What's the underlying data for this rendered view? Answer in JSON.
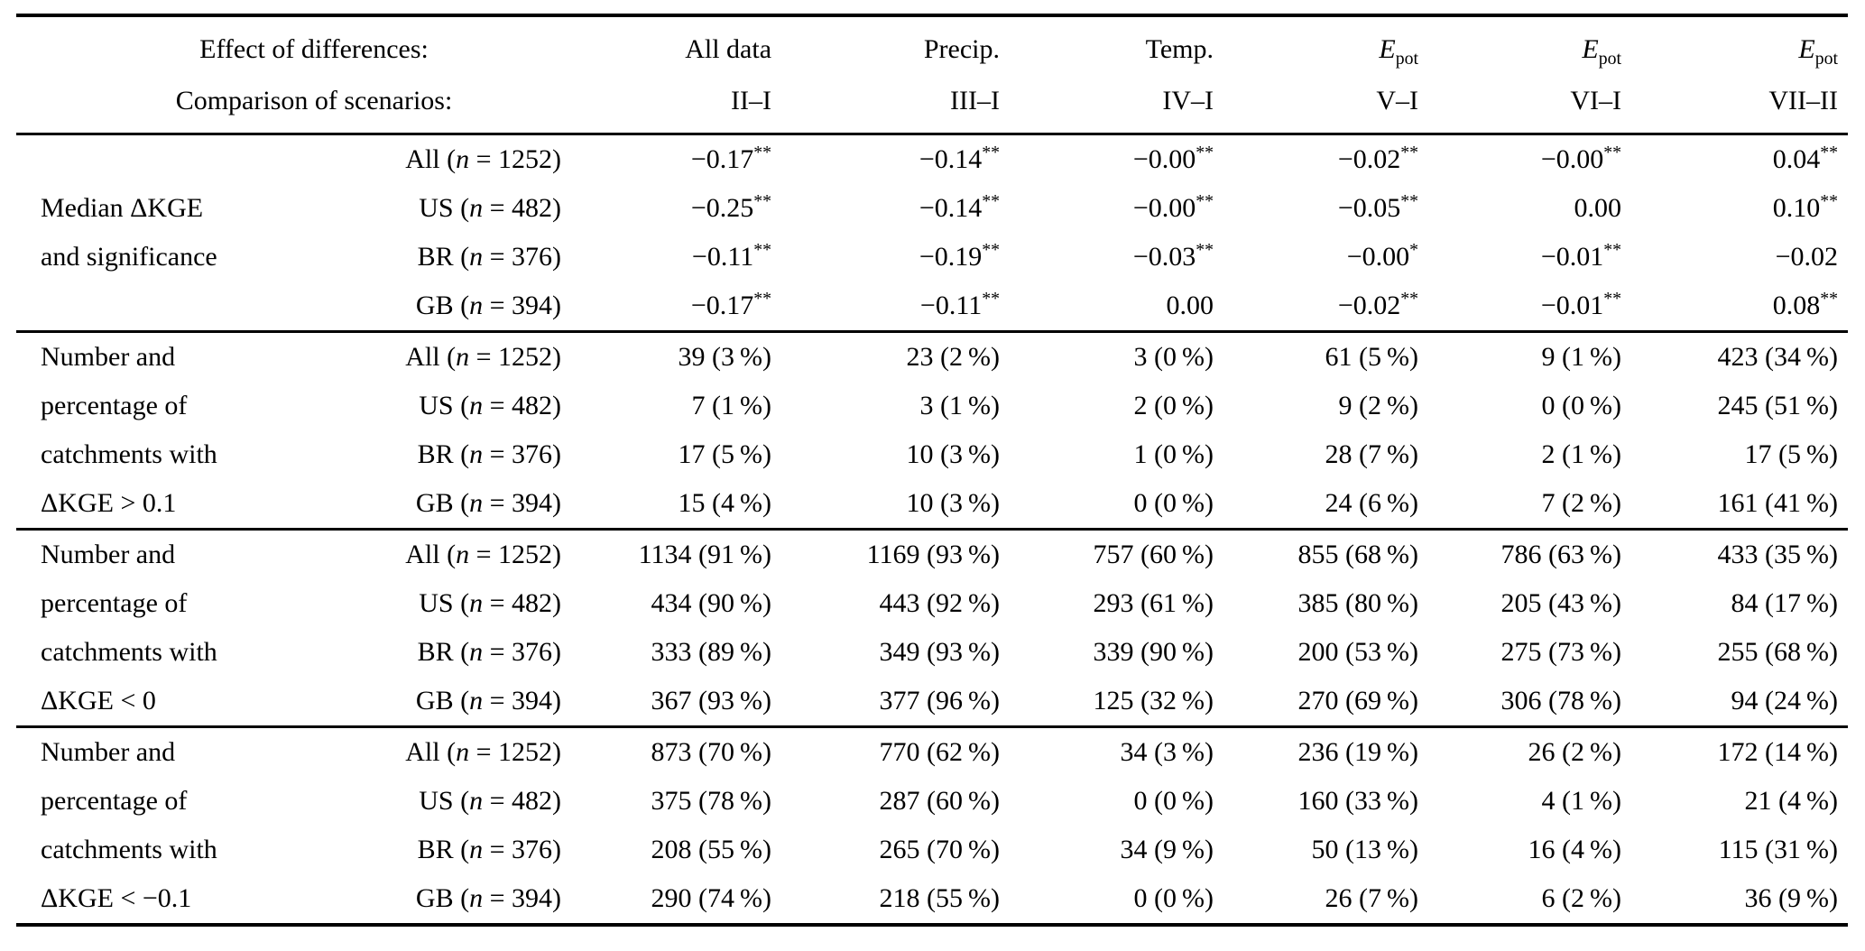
{
  "table": {
    "corner_header": {
      "line1": "Effect of differences:",
      "line2": "Comparison of scenarios:"
    },
    "columns": [
      {
        "label": "All data",
        "comparison": "II–I"
      },
      {
        "label": "Precip.",
        "comparison": "III–I"
      },
      {
        "label": "Temp.",
        "comparison": "IV–I"
      },
      {
        "label_italic": "E",
        "label_sub": "pot",
        "comparison": "V–I"
      },
      {
        "label_italic": "E",
        "label_sub": "pot",
        "comparison": "VI–I"
      },
      {
        "label_italic": "E",
        "label_sub": "pot",
        "comparison": "VII–II"
      }
    ],
    "row_groups": [
      {
        "name": "median-dkge-significance",
        "rows": [
          {
            "label_line": "",
            "region": "All",
            "n": "1252",
            "values": [
              "−0.17**",
              "−0.14**",
              "−0.00**",
              "−0.02**",
              "−0.00**",
              "0.04**"
            ]
          },
          {
            "label_line": "Median ΔKGE",
            "region": "US",
            "n": "482",
            "values": [
              "−0.25**",
              "−0.14**",
              "−0.00**",
              "−0.05**",
              "0.00",
              "0.10**"
            ]
          },
          {
            "label_line": "and significance",
            "region": "BR",
            "n": "376",
            "values": [
              "−0.11**",
              "−0.19**",
              "−0.03**",
              "−0.00*",
              "−0.01**",
              "−0.02"
            ]
          },
          {
            "label_line": "",
            "region": "GB",
            "n": "394",
            "values": [
              "−0.17**",
              "−0.11**",
              "0.00",
              "−0.02**",
              "−0.01**",
              "0.08**"
            ]
          }
        ]
      },
      {
        "name": "catchments-dkge-gt-0.1",
        "rows": [
          {
            "label_line": "Number and",
            "region": "All",
            "n": "1252",
            "values": [
              "39 (3 %)",
              "23 (2 %)",
              "3 (0 %)",
              "61 (5 %)",
              "9 (1 %)",
              "423 (34 %)"
            ]
          },
          {
            "label_line": "percentage of",
            "region": "US",
            "n": "482",
            "values": [
              "7 (1 %)",
              "3 (1 %)",
              "2 (0 %)",
              "9 (2 %)",
              "0 (0 %)",
              "245 (51 %)"
            ]
          },
          {
            "label_line": "catchments with",
            "region": "BR",
            "n": "376",
            "values": [
              "17 (5 %)",
              "10 (3 %)",
              "1 (0 %)",
              "28 (7 %)",
              "2 (1 %)",
              "17 (5 %)"
            ]
          },
          {
            "label_line": "ΔKGE > 0.1",
            "region": "GB",
            "n": "394",
            "values": [
              "15 (4 %)",
              "10 (3 %)",
              "0 (0 %)",
              "24 (6 %)",
              "7 (2 %)",
              "161 (41 %)"
            ]
          }
        ]
      },
      {
        "name": "catchments-dkge-lt-0",
        "rows": [
          {
            "label_line": "Number and",
            "region": "All",
            "n": "1252",
            "values": [
              "1134 (91 %)",
              "1169 (93 %)",
              "757 (60 %)",
              "855 (68 %)",
              "786 (63 %)",
              "433 (35 %)"
            ]
          },
          {
            "label_line": "percentage of",
            "region": "US",
            "n": "482",
            "values": [
              "434 (90 %)",
              "443 (92 %)",
              "293 (61 %)",
              "385 (80 %)",
              "205 (43 %)",
              "84 (17 %)"
            ]
          },
          {
            "label_line": "catchments with",
            "region": "BR",
            "n": "376",
            "values": [
              "333 (89 %)",
              "349 (93 %)",
              "339 (90 %)",
              "200 (53 %)",
              "275 (73 %)",
              "255 (68 %)"
            ]
          },
          {
            "label_line": "ΔKGE < 0",
            "region": "GB",
            "n": "394",
            "values": [
              "367 (93 %)",
              "377 (96 %)",
              "125 (32 %)",
              "270 (69 %)",
              "306 (78 %)",
              "94 (24 %)"
            ]
          }
        ]
      },
      {
        "name": "catchments-dkge-lt-neg0.1",
        "rows": [
          {
            "label_line": "Number and",
            "region": "All",
            "n": "1252",
            "values": [
              "873 (70 %)",
              "770 (62 %)",
              "34 (3 %)",
              "236 (19 %)",
              "26 (2 %)",
              "172 (14 %)"
            ]
          },
          {
            "label_line": "percentage of",
            "region": "US",
            "n": "482",
            "values": [
              "375 (78 %)",
              "287 (60 %)",
              "0 (0 %)",
              "160 (33 %)",
              "4 (1 %)",
              "21 (4 %)"
            ]
          },
          {
            "label_line": "catchments with",
            "region": "BR",
            "n": "376",
            "values": [
              "208 (55 %)",
              "265 (70 %)",
              "34 (9 %)",
              "50 (13 %)",
              "16 (4 %)",
              "115 (31 %)"
            ]
          },
          {
            "label_line": "ΔKGE < −0.1",
            "region": "GB",
            "n": "394",
            "values": [
              "290 (74 %)",
              "218 (55 %)",
              "0 (0 %)",
              "26 (7 %)",
              "6 (2 %)",
              "36 (9 %)"
            ]
          }
        ]
      }
    ]
  }
}
